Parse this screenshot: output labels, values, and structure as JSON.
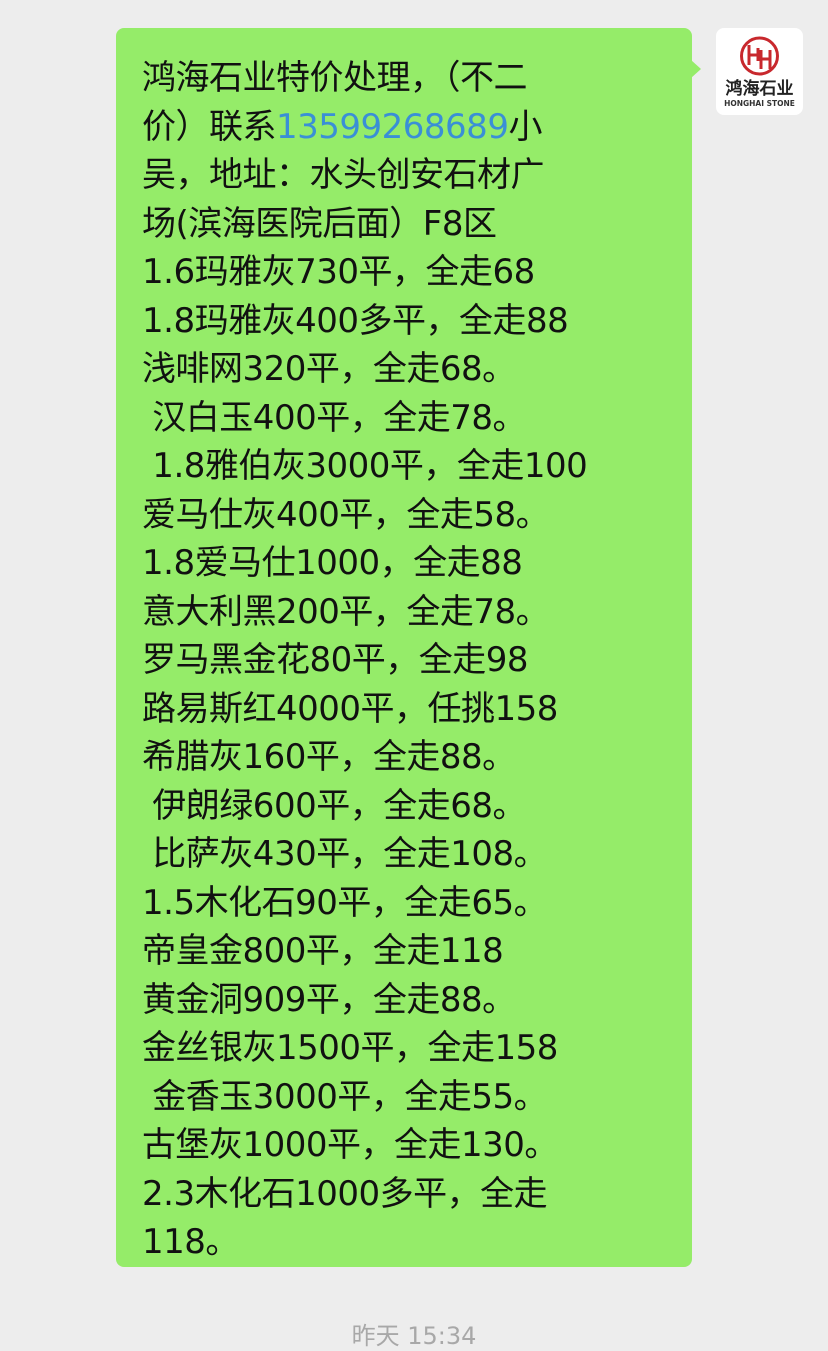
{
  "message": {
    "intro": {
      "line1": "鸿海石业特价处理，（不二",
      "line2_pre": "价）联系",
      "phone": "13599268689",
      "line2_post": "小",
      "line3": "吴，地址：水头创安石材广",
      "line4": "场(滨海医院后面）F8区"
    },
    "lines": [
      "1.6玛雅灰730平，全走68",
      "1.8玛雅灰400多平，全走88",
      "浅啡网320平，全走68。",
      " 汉白玉400平，全走78。",
      " 1.8雅伯灰3000平，全走100",
      "爱马仕灰400平，全走58。",
      "1.8爱马仕1000，全走88",
      "意大利黑200平，全走78。",
      "罗马黑金花80平，全走98",
      "路易斯红4000平，任挑158",
      "希腊灰160平，全走88。",
      " 伊朗绿600平，全走68。",
      " 比萨灰430平，全走108。",
      "1.5木化石90平，全走65。",
      "帝皇金800平，全走118",
      "黄金洞909平，全走88。",
      "金丝银灰1500平，全走158",
      " 金香玉3000平，全走55。",
      "古堡灰1000平，全走130。",
      "2.3木化石1000多平，全走",
      "118。"
    ],
    "bubble_color": "#95ec69",
    "phone_color": "#3a8fd6"
  },
  "avatar": {
    "logo_letters": "HH",
    "logo_cn": "鸿海石业",
    "logo_en": "HONGHAI STONE"
  },
  "timestamp": "昨天 15:34"
}
